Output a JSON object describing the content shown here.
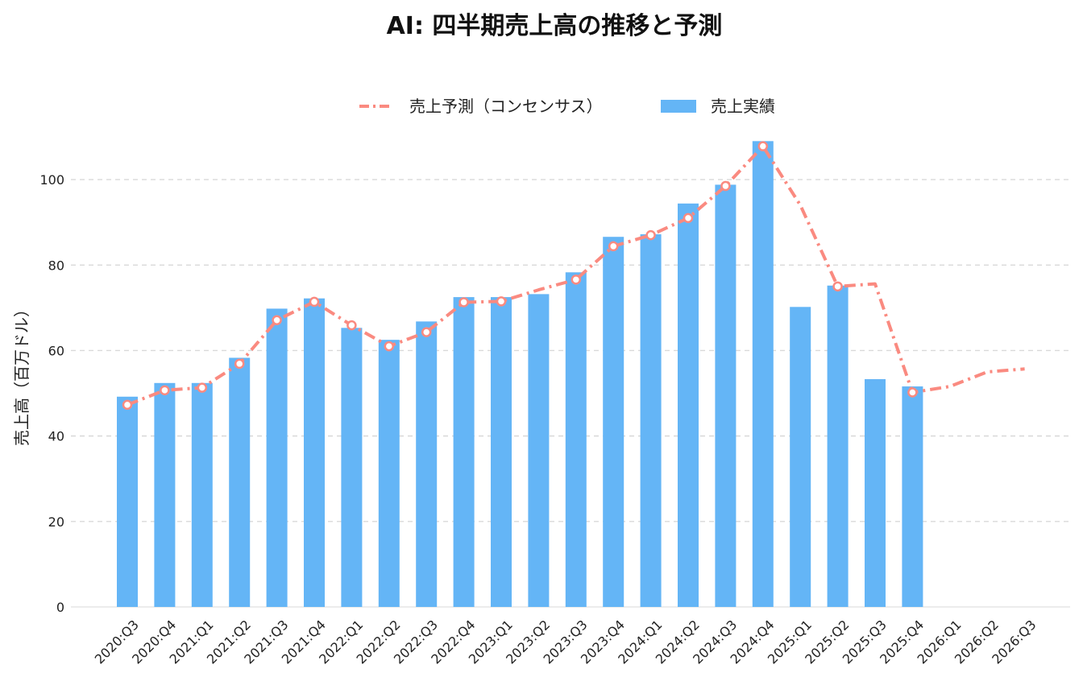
{
  "chart_data": {
    "type": "bar",
    "title": "AI: 四半期売上高の推移と予測",
    "xlabel": "",
    "ylabel": "売上高（百万ドル）",
    "ylim": [
      0,
      110
    ],
    "yticks": [
      0,
      20,
      40,
      60,
      80,
      100
    ],
    "grid": true,
    "legend_position": "top-center",
    "categories": [
      "2020:Q3",
      "2020:Q4",
      "2021:Q1",
      "2021:Q2",
      "2021:Q3",
      "2021:Q4",
      "2022:Q1",
      "2022:Q2",
      "2022:Q3",
      "2022:Q4",
      "2023:Q1",
      "2023:Q2",
      "2023:Q3",
      "2023:Q4",
      "2024:Q1",
      "2024:Q2",
      "2024:Q3",
      "2024:Q4",
      "2025:Q1",
      "2025:Q2",
      "2025:Q3",
      "2025:Q4",
      "2026:Q1",
      "2026:Q2",
      "2026:Q3"
    ],
    "series": [
      {
        "name": "売上予測（コンセンサス）",
        "type": "line",
        "style": "dash-dot",
        "color": "#fa8a80",
        "values": [
          47.3,
          50.7,
          51.3,
          56.9,
          67.1,
          71.4,
          65.9,
          61.0,
          64.3,
          71.3,
          71.5,
          74.2,
          76.6,
          84.4,
          87.0,
          91.0,
          98.5,
          107.8,
          94.0,
          75.0,
          75.6,
          50.2,
          51.6,
          55.0,
          55.7
        ],
        "markers": [
          true,
          true,
          true,
          true,
          true,
          true,
          true,
          true,
          true,
          true,
          true,
          false,
          true,
          true,
          true,
          true,
          true,
          true,
          false,
          true,
          false,
          true,
          false,
          false,
          false
        ]
      },
      {
        "name": "売上実績",
        "type": "bar",
        "color": "#64b5f6",
        "values": [
          49.2,
          52.4,
          52.4,
          58.3,
          69.8,
          72.2,
          65.3,
          62.5,
          66.8,
          72.5,
          72.5,
          73.2,
          78.3,
          86.6,
          87.2,
          94.4,
          98.8,
          109.0,
          70.2,
          75.2,
          53.3,
          51.6,
          null,
          null,
          null
        ]
      }
    ]
  }
}
